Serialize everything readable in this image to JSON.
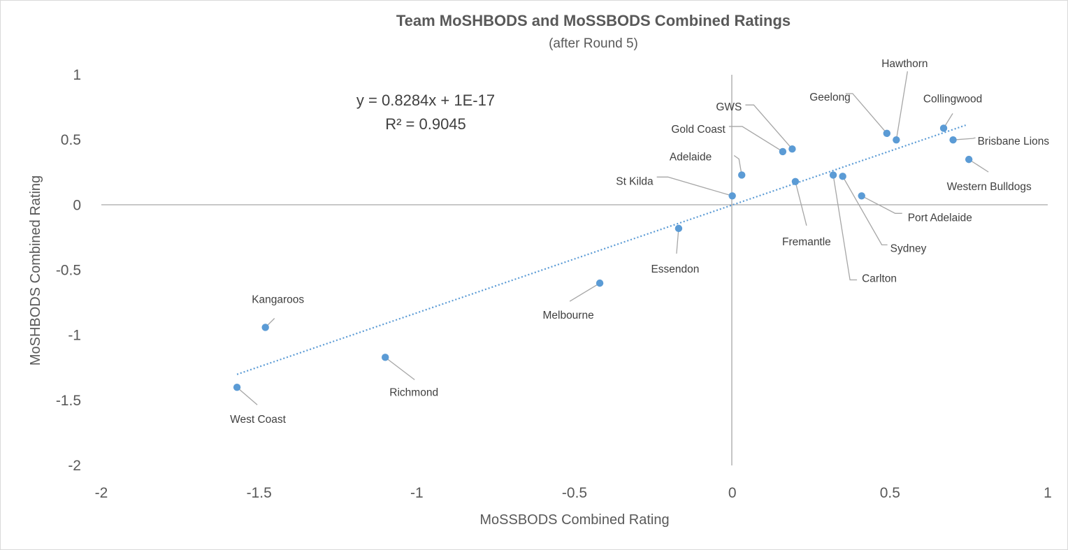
{
  "chart_data": {
    "type": "scatter",
    "title": "Team MoSHBODS and MoSSBODS Combined Ratings",
    "subtitle": "(after Round 5)",
    "xlabel": "MoSSBODS Combined Rating",
    "ylabel": "MoSHBODS Combined Rating",
    "xlim": [
      -2,
      1
    ],
    "ylim": [
      -2,
      1
    ],
    "x_ticks": [
      "-2",
      "-1.5",
      "-1",
      "-0.5",
      "0",
      "0.5",
      "1"
    ],
    "y_ticks": [
      "1",
      "0.5",
      "0",
      "-0.5",
      "-1",
      "-1.5",
      "-2"
    ],
    "grid": false,
    "legend": "none",
    "marker_color": "#5b9bd5",
    "trendline": {
      "type": "linear",
      "slope": 0.8284,
      "intercept": 0,
      "x_range": [
        -1.57,
        0.74
      ],
      "color": "#5b9bd5",
      "style": "dotted",
      "equation": "y = 0.8284x + 1E-17",
      "r_squared": "R² = 0.9045"
    },
    "points": [
      {
        "name": "Kangaroos",
        "x": -1.48,
        "y": -0.94
      },
      {
        "name": "West Coast",
        "x": -1.57,
        "y": -1.4
      },
      {
        "name": "Richmond",
        "x": -1.1,
        "y": -1.17
      },
      {
        "name": "Melbourne",
        "x": -0.42,
        "y": -0.6
      },
      {
        "name": "Essendon",
        "x": -0.17,
        "y": -0.18
      },
      {
        "name": "St Kilda",
        "x": 0.0,
        "y": 0.07
      },
      {
        "name": "Adelaide",
        "x": 0.03,
        "y": 0.23
      },
      {
        "name": "Gold Coast",
        "x": 0.16,
        "y": 0.41
      },
      {
        "name": "GWS",
        "x": 0.19,
        "y": 0.43
      },
      {
        "name": "Fremantle",
        "x": 0.2,
        "y": 0.18
      },
      {
        "name": "Carlton",
        "x": 0.32,
        "y": 0.23
      },
      {
        "name": "Sydney",
        "x": 0.35,
        "y": 0.22
      },
      {
        "name": "Port Adelaide",
        "x": 0.41,
        "y": 0.07
      },
      {
        "name": "Geelong",
        "x": 0.49,
        "y": 0.55
      },
      {
        "name": "Hawthorn",
        "x": 0.52,
        "y": 0.5
      },
      {
        "name": "Collingwood",
        "x": 0.67,
        "y": 0.59
      },
      {
        "name": "Brisbane Lions",
        "x": 0.7,
        "y": 0.5
      },
      {
        "name": "Western Bulldogs",
        "x": 0.75,
        "y": 0.35
      }
    ]
  }
}
